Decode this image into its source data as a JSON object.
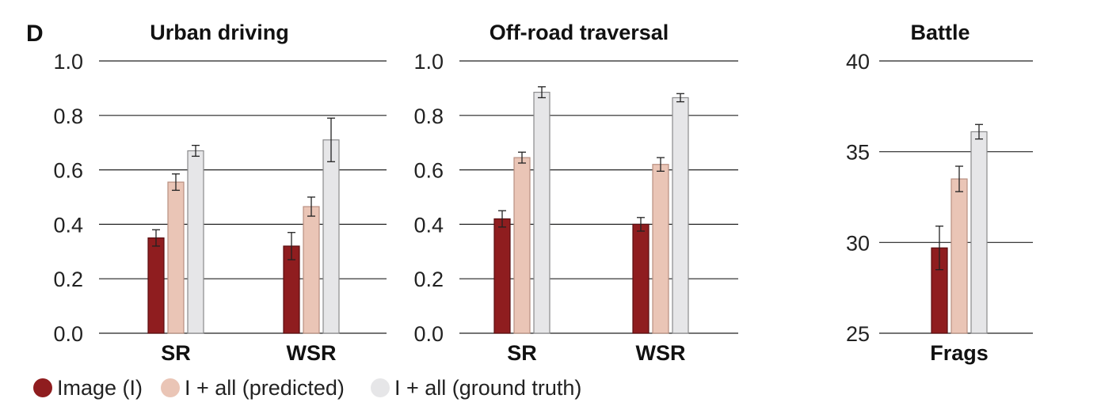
{
  "panel_label": "D",
  "legend": [
    {
      "label": "Image (I)",
      "color": "#8f1d1f"
    },
    {
      "label": "I + all (predicted)",
      "color": "#eac5b6"
    },
    {
      "label": "I + all (ground truth)",
      "color": "#e6e6e8"
    }
  ],
  "chart_data": [
    {
      "type": "bar",
      "title": "Urban driving",
      "categories": [
        "SR",
        "WSR"
      ],
      "yticks": [
        "0.0",
        "0.2",
        "0.4",
        "0.6",
        "0.8",
        "1.0"
      ],
      "ylim": [
        0,
        1.0
      ],
      "grid": true,
      "series": [
        {
          "name": "Image (I)",
          "values": [
            0.35,
            0.32
          ],
          "errors": [
            0.03,
            0.05
          ]
        },
        {
          "name": "I + all (predicted)",
          "values": [
            0.555,
            0.465
          ],
          "errors": [
            0.03,
            0.035
          ]
        },
        {
          "name": "I + all (ground truth)",
          "values": [
            0.67,
            0.71
          ],
          "errors": [
            0.02,
            0.08
          ]
        }
      ]
    },
    {
      "type": "bar",
      "title": "Off-road traversal",
      "categories": [
        "SR",
        "WSR"
      ],
      "yticks": [
        "0.0",
        "0.2",
        "0.4",
        "0.6",
        "0.8",
        "1.0"
      ],
      "ylim": [
        0,
        1.0
      ],
      "grid": true,
      "series": [
        {
          "name": "Image (I)",
          "values": [
            0.42,
            0.4
          ],
          "errors": [
            0.03,
            0.025
          ]
        },
        {
          "name": "I + all (predicted)",
          "values": [
            0.645,
            0.62
          ],
          "errors": [
            0.02,
            0.025
          ]
        },
        {
          "name": "I + all (ground truth)",
          "values": [
            0.885,
            0.865
          ],
          "errors": [
            0.02,
            0.015
          ]
        }
      ]
    },
    {
      "type": "bar",
      "title": "Battle",
      "categories": [
        "Frags"
      ],
      "yticks": [
        "25",
        "30",
        "35",
        "40"
      ],
      "ylim": [
        25,
        40
      ],
      "grid": true,
      "series": [
        {
          "name": "Image (I)",
          "values": [
            29.7
          ],
          "errors": [
            1.2
          ]
        },
        {
          "name": "I + all (predicted)",
          "values": [
            33.5
          ],
          "errors": [
            0.7
          ]
        },
        {
          "name": "I + all (ground truth)",
          "values": [
            36.1
          ],
          "errors": [
            0.4
          ]
        }
      ]
    }
  ]
}
